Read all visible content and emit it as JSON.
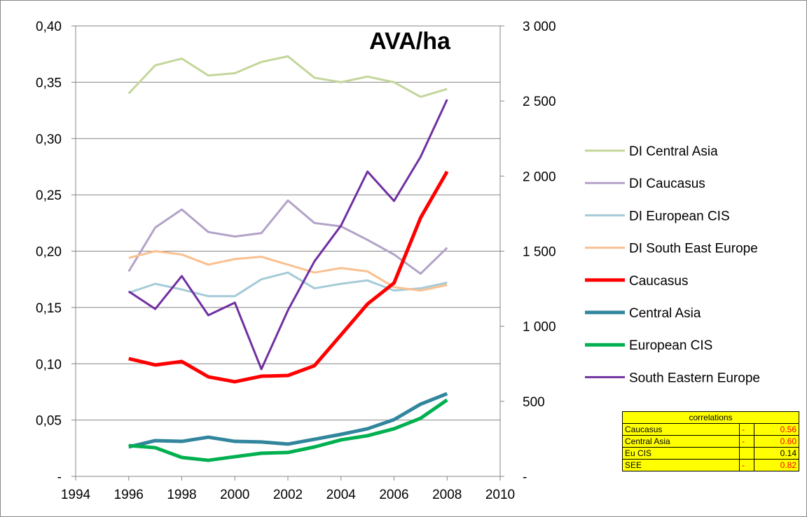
{
  "chart_data": {
    "type": "line",
    "title": "AVA/ha",
    "x": [
      1996,
      1997,
      1998,
      1999,
      2000,
      2001,
      2002,
      2003,
      2004,
      2005,
      2006,
      2007,
      2008
    ],
    "xlim": [
      1994,
      2010
    ],
    "xticks": [
      1994,
      1996,
      1998,
      2000,
      2002,
      2004,
      2006,
      2008,
      2010
    ],
    "ylim": [
      0,
      0.4
    ],
    "yticks": [
      {
        "value": 0,
        "label": "-"
      },
      {
        "value": 0.05,
        "label": "0,05"
      },
      {
        "value": 0.1,
        "label": "0,10"
      },
      {
        "value": 0.15,
        "label": "0,15"
      },
      {
        "value": 0.2,
        "label": "0,20"
      },
      {
        "value": 0.25,
        "label": "0,25"
      },
      {
        "value": 0.3,
        "label": "0,30"
      },
      {
        "value": 0.35,
        "label": "0,35"
      },
      {
        "value": 0.4,
        "label": "0,40"
      }
    ],
    "y2lim": [
      0,
      3000
    ],
    "y2ticks": [
      {
        "value": 0,
        "label": "-"
      },
      500,
      {
        "value": 1000,
        "label": "1 000"
      },
      {
        "value": 1500,
        "label": "1 500"
      },
      {
        "value": 2000,
        "label": "2 000"
      },
      {
        "value": 2500,
        "label": "2 500"
      },
      {
        "value": 3000,
        "label": "3 000"
      }
    ],
    "grid": true,
    "legend": "right",
    "series": [
      {
        "name": "DI Central Asia",
        "color": "#c3d69b",
        "width": 3,
        "values": [
          0.34,
          0.365,
          0.371,
          0.356,
          0.358,
          0.368,
          0.373,
          0.354,
          0.35,
          0.355,
          0.35,
          0.337,
          0.344
        ]
      },
      {
        "name": "DI Caucasus",
        "color": "#b3a2c7",
        "width": 3,
        "values": [
          0.182,
          0.221,
          0.237,
          0.217,
          0.213,
          0.216,
          0.245,
          0.225,
          0.222,
          0.21,
          0.197,
          0.18,
          0.203
        ]
      },
      {
        "name": "DI European CIS",
        "color": "#a5cbd8",
        "width": 3,
        "values": [
          0.163,
          0.171,
          0.166,
          0.16,
          0.16,
          0.175,
          0.181,
          0.167,
          0.171,
          0.174,
          0.165,
          0.167,
          0.172
        ]
      },
      {
        "name": "DI South East Europe",
        "color": "#fac090",
        "width": 3,
        "values": [
          0.194,
          0.2,
          0.197,
          0.188,
          0.193,
          0.195,
          0.188,
          0.181,
          0.185,
          0.182,
          0.168,
          0.165,
          0.17
        ]
      },
      {
        "name": "Caucasus",
        "color": "#ff0000",
        "width": 5,
        "axis": "y2",
        "values": [
          784,
          742,
          765,
          663,
          630,
          667,
          672,
          737,
          942,
          1148,
          1288,
          1722,
          2030
        ]
      },
      {
        "name": "Central Asia",
        "color": "#31859c",
        "width": 5,
        "axis": "y2",
        "values": [
          196,
          238,
          233,
          261,
          233,
          229,
          215,
          247,
          280,
          317,
          378,
          481,
          551
        ]
      },
      {
        "name": "European CIS",
        "color": "#00b050",
        "width": 5,
        "axis": "y2",
        "values": [
          205,
          191,
          126,
          107,
          131,
          154,
          159,
          196,
          243,
          271,
          317,
          387,
          509
        ]
      },
      {
        "name": "South Eastern Europe",
        "color": "#7030a0",
        "width": 3,
        "axis": "y2",
        "values": [
          1232,
          1115,
          1334,
          1073,
          1157,
          714,
          1106,
          1432,
          1670,
          2030,
          1834,
          2128,
          2510
        ]
      }
    ]
  },
  "correlations": {
    "title": "correlations",
    "rows": [
      {
        "label": "Caucasus",
        "sign": "-",
        "value": "0.56"
      },
      {
        "label": "Central Asia",
        "sign": "-",
        "value": "0.60"
      },
      {
        "label": "Eu CIS",
        "value": "0.14"
      },
      {
        "label": "SEE",
        "sign": "-",
        "value": "0.82"
      }
    ]
  }
}
